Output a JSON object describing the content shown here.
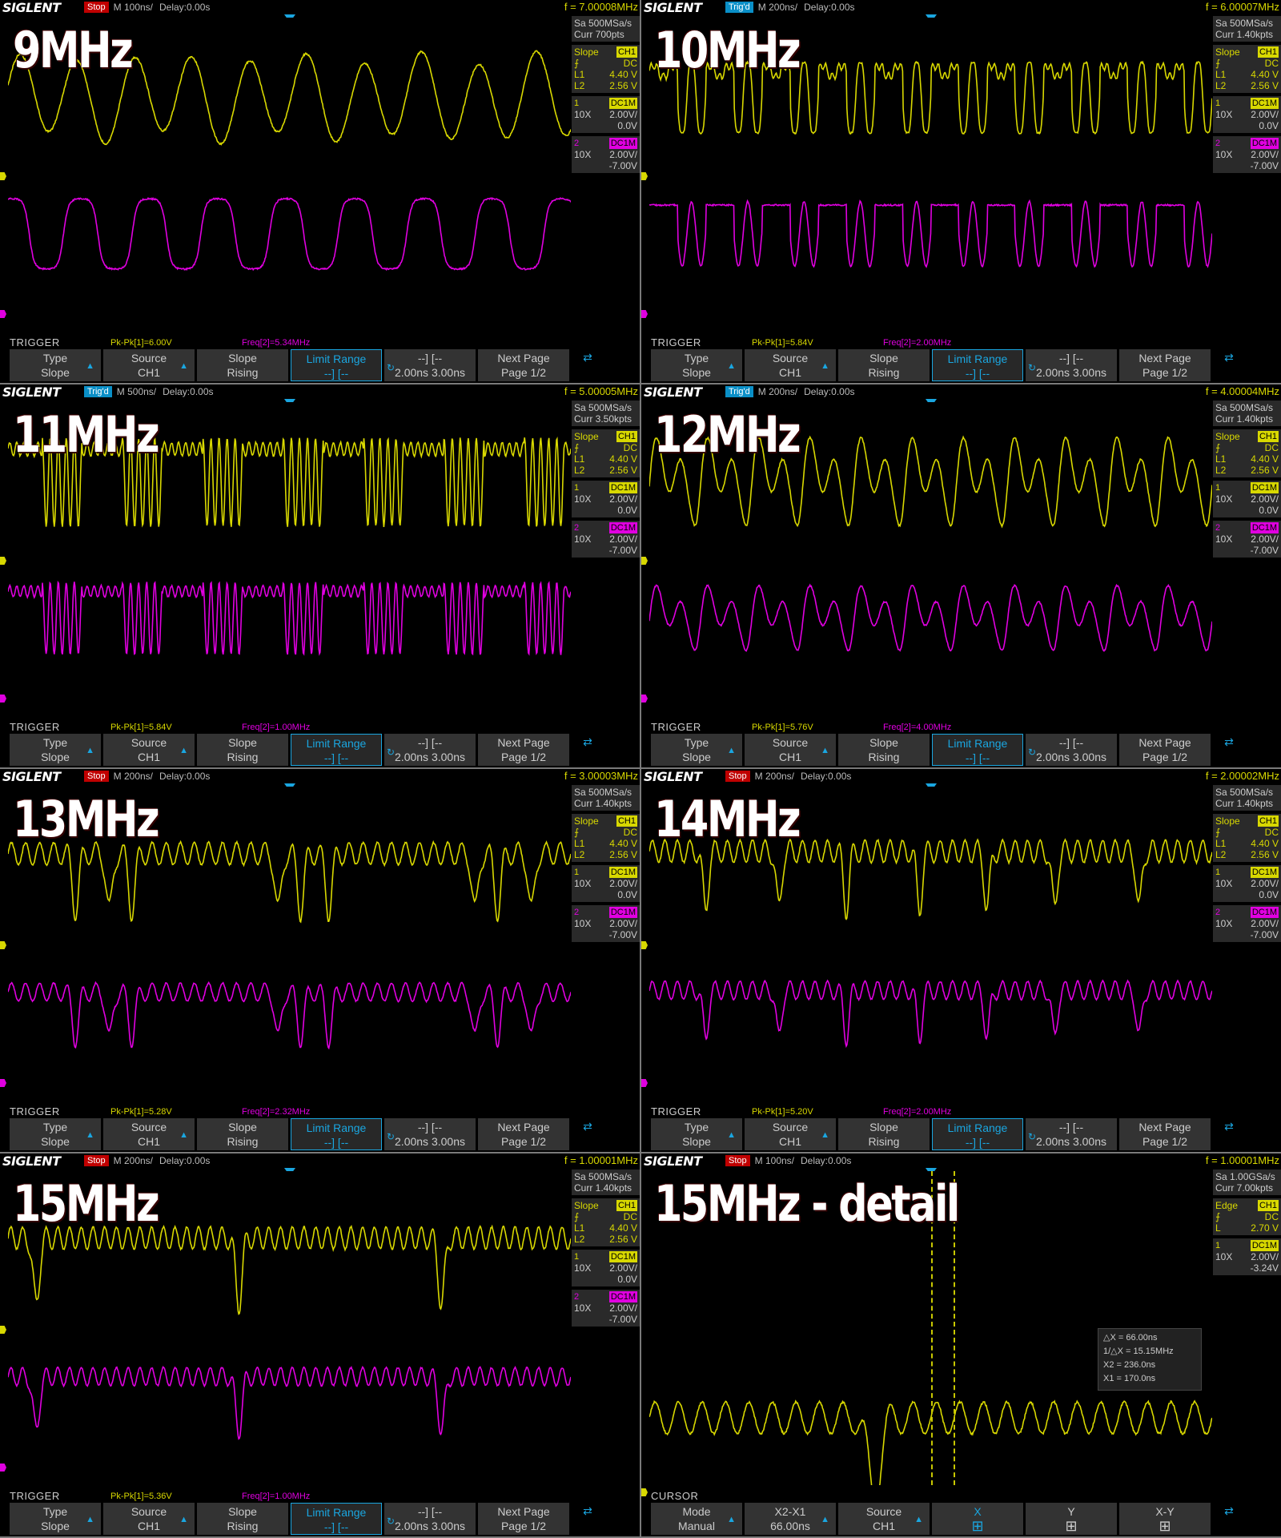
{
  "panels": [
    {
      "brand": "SIGLENT",
      "state": "Stop",
      "timebase": "M 100ns/",
      "delay": "Delay:0.00s",
      "freq": "f = 7.00008MHz",
      "title": "9MHz",
      "sa": "Sa 500MSa/s",
      "curr": "Curr 700pts",
      "trig_type": "Slope",
      "trig_src": "CH1",
      "coupling": "DC",
      "l1": "4.40 V",
      "l2": "2.56 V",
      "ch1": {
        "probe": "10X",
        "coupling": "DC1M",
        "scale": "2.00V/",
        "offset": "0.0V"
      },
      "ch2": {
        "probe": "10X",
        "coupling": "DC1M",
        "scale": "2.00V/",
        "offset": "-7.00V"
      },
      "mode": "TRIGGER",
      "pk": "Pk-Pk[1]=6.00V",
      "fq": "Freq[2]=5.34MHz",
      "wave": "w9",
      "softkeys": [
        {
          "l1": "Type",
          "l2": "Slope",
          "arrow": true
        },
        {
          "l1": "Source",
          "l2": "CH1",
          "arrow": true
        },
        {
          "l1": "Slope",
          "l2": "Rising"
        },
        {
          "l1": "Limit Range",
          "l2": "--] [--",
          "hl": true
        },
        {
          "l1": "--] [--",
          "l2": "2.00ns 3.00ns",
          "circ": true
        },
        {
          "l1": "Next Page",
          "l2": "Page 1/2"
        }
      ]
    },
    {
      "brand": "SIGLENT",
      "state": "Trig'd",
      "timebase": "M 200ns/",
      "delay": "Delay:0.00s",
      "freq": "f = 6.00007MHz",
      "title": "10MHz",
      "sa": "Sa 500MSa/s",
      "curr": "Curr 1.40kpts",
      "trig_type": "Slope",
      "trig_src": "CH1",
      "coupling": "DC",
      "l1": "4.40 V",
      "l2": "2.56 V",
      "ch1": {
        "probe": "10X",
        "coupling": "DC1M",
        "scale": "2.00V/",
        "offset": "0.0V"
      },
      "ch2": {
        "probe": "10X",
        "coupling": "DC1M",
        "scale": "2.00V/",
        "offset": "-7.00V"
      },
      "mode": "TRIGGER",
      "pk": "Pk-Pk[1]=5.84V",
      "fq": "Freq[2]=2.00MHz",
      "wave": "w10",
      "softkeys": [
        {
          "l1": "Type",
          "l2": "Slope",
          "arrow": true
        },
        {
          "l1": "Source",
          "l2": "CH1",
          "arrow": true
        },
        {
          "l1": "Slope",
          "l2": "Rising"
        },
        {
          "l1": "Limit Range",
          "l2": "--] [--",
          "hl": true
        },
        {
          "l1": "--] [--",
          "l2": "2.00ns 3.00ns",
          "circ": true
        },
        {
          "l1": "Next Page",
          "l2": "Page 1/2"
        }
      ]
    },
    {
      "brand": "SIGLENT",
      "state": "Trig'd",
      "timebase": "M 500ns/",
      "delay": "Delay:0.00s",
      "freq": "f = 5.00005MHz",
      "title": "11MHz",
      "sa": "Sa 500MSa/s",
      "curr": "Curr 3.50kpts",
      "trig_type": "Slope",
      "trig_src": "CH1",
      "coupling": "DC",
      "l1": "4.40 V",
      "l2": "2.56 V",
      "ch1": {
        "probe": "10X",
        "coupling": "DC1M",
        "scale": "2.00V/",
        "offset": "0.0V"
      },
      "ch2": {
        "probe": "10X",
        "coupling": "DC1M",
        "scale": "2.00V/",
        "offset": "-7.00V"
      },
      "mode": "TRIGGER",
      "pk": "Pk-Pk[1]=5.84V",
      "fq": "Freq[2]=1.00MHz",
      "wave": "w11",
      "softkeys": [
        {
          "l1": "Type",
          "l2": "Slope",
          "arrow": true
        },
        {
          "l1": "Source",
          "l2": "CH1",
          "arrow": true
        },
        {
          "l1": "Slope",
          "l2": "Rising"
        },
        {
          "l1": "Limit Range",
          "l2": "--] [--",
          "hl": true
        },
        {
          "l1": "--] [--",
          "l2": "2.00ns 3.00ns",
          "circ": true
        },
        {
          "l1": "Next Page",
          "l2": "Page 1/2"
        }
      ]
    },
    {
      "brand": "SIGLENT",
      "state": "Trig'd",
      "timebase": "M 200ns/",
      "delay": "Delay:0.00s",
      "freq": "f = 4.00004MHz",
      "title": "12MHz",
      "sa": "Sa 500MSa/s",
      "curr": "Curr 1.40kpts",
      "trig_type": "Slope",
      "trig_src": "CH1",
      "coupling": "DC",
      "l1": "4.40 V",
      "l2": "2.56 V",
      "ch1": {
        "probe": "10X",
        "coupling": "DC1M",
        "scale": "2.00V/",
        "offset": "0.0V"
      },
      "ch2": {
        "probe": "10X",
        "coupling": "DC1M",
        "scale": "2.00V/",
        "offset": "-7.00V"
      },
      "mode": "TRIGGER",
      "pk": "Pk-Pk[1]=5.76V",
      "fq": "Freq[2]=4.00MHz",
      "wave": "w12",
      "softkeys": [
        {
          "l1": "Type",
          "l2": "Slope",
          "arrow": true
        },
        {
          "l1": "Source",
          "l2": "CH1",
          "arrow": true
        },
        {
          "l1": "Slope",
          "l2": "Rising"
        },
        {
          "l1": "Limit Range",
          "l2": "--] [--",
          "hl": true
        },
        {
          "l1": "--] [--",
          "l2": "2.00ns 3.00ns",
          "circ": true
        },
        {
          "l1": "Next Page",
          "l2": "Page 1/2"
        }
      ]
    },
    {
      "brand": "SIGLENT",
      "state": "Stop",
      "timebase": "M 200ns/",
      "delay": "Delay:0.00s",
      "freq": "f = 3.00003MHz",
      "title": "13MHz",
      "sa": "Sa 500MSa/s",
      "curr": "Curr 1.40kpts",
      "trig_type": "Slope",
      "trig_src": "CH1",
      "coupling": "DC",
      "l1": "4.40 V",
      "l2": "2.56 V",
      "ch1": {
        "probe": "10X",
        "coupling": "DC1M",
        "scale": "2.00V/",
        "offset": "0.0V"
      },
      "ch2": {
        "probe": "10X",
        "coupling": "DC1M",
        "scale": "2.00V/",
        "offset": "-7.00V"
      },
      "mode": "TRIGGER",
      "pk": "Pk-Pk[1]=5.28V",
      "fq": "Freq[2]=2.32MHz",
      "wave": "w13",
      "softkeys": [
        {
          "l1": "Type",
          "l2": "Slope",
          "arrow": true
        },
        {
          "l1": "Source",
          "l2": "CH1",
          "arrow": true
        },
        {
          "l1": "Slope",
          "l2": "Rising"
        },
        {
          "l1": "Limit Range",
          "l2": "--] [--",
          "hl": true
        },
        {
          "l1": "--] [--",
          "l2": "2.00ns 3.00ns",
          "circ": true
        },
        {
          "l1": "Next Page",
          "l2": "Page 1/2"
        }
      ]
    },
    {
      "brand": "SIGLENT",
      "state": "Stop",
      "timebase": "M 200ns/",
      "delay": "Delay:0.00s",
      "freq": "f = 2.00002MHz",
      "title": "14MHz",
      "sa": "Sa 500MSa/s",
      "curr": "Curr 1.40kpts",
      "trig_type": "Slope",
      "trig_src": "CH1",
      "coupling": "DC",
      "l1": "4.40 V",
      "l2": "2.56 V",
      "ch1": {
        "probe": "10X",
        "coupling": "DC1M",
        "scale": "2.00V/",
        "offset": "0.0V"
      },
      "ch2": {
        "probe": "10X",
        "coupling": "DC1M",
        "scale": "2.00V/",
        "offset": "-7.00V"
      },
      "mode": "TRIGGER",
      "pk": "Pk-Pk[1]=5.20V",
      "fq": "Freq[2]=2.00MHz",
      "wave": "w14",
      "softkeys": [
        {
          "l1": "Type",
          "l2": "Slope",
          "arrow": true
        },
        {
          "l1": "Source",
          "l2": "CH1",
          "arrow": true
        },
        {
          "l1": "Slope",
          "l2": "Rising"
        },
        {
          "l1": "Limit Range",
          "l2": "--] [--",
          "hl": true
        },
        {
          "l1": "--] [--",
          "l2": "2.00ns 3.00ns",
          "circ": true
        },
        {
          "l1": "Next Page",
          "l2": "Page 1/2"
        }
      ]
    },
    {
      "brand": "SIGLENT",
      "state": "Stop",
      "timebase": "M 200ns/",
      "delay": "Delay:0.00s",
      "freq": "f = 1.00001MHz",
      "title": "15MHz",
      "sa": "Sa 500MSa/s",
      "curr": "Curr 1.40kpts",
      "trig_type": "Slope",
      "trig_src": "CH1",
      "coupling": "DC",
      "l1": "4.40 V",
      "l2": "2.56 V",
      "ch1": {
        "probe": "10X",
        "coupling": "DC1M",
        "scale": "2.00V/",
        "offset": "0.0V"
      },
      "ch2": {
        "probe": "10X",
        "coupling": "DC1M",
        "scale": "2.00V/",
        "offset": "-7.00V"
      },
      "mode": "TRIGGER",
      "pk": "Pk-Pk[1]=5.36V",
      "fq": "Freq[2]=1.00MHz",
      "wave": "w15",
      "softkeys": [
        {
          "l1": "Type",
          "l2": "Slope",
          "arrow": true
        },
        {
          "l1": "Source",
          "l2": "CH1",
          "arrow": true
        },
        {
          "l1": "Slope",
          "l2": "Rising"
        },
        {
          "l1": "Limit Range",
          "l2": "--] [--",
          "hl": true
        },
        {
          "l1": "--] [--",
          "l2": "2.00ns 3.00ns",
          "circ": true
        },
        {
          "l1": "Next Page",
          "l2": "Page 1/2"
        }
      ]
    },
    {
      "brand": "SIGLENT",
      "state": "Stop",
      "timebase": "M 100ns/",
      "delay": "Delay:0.00s",
      "freq": "f = 1.00001MHz",
      "title": "15MHz - detail",
      "sa": "Sa 1.00GSa/s",
      "curr": "Curr 7.00kpts",
      "trig_type": "Edge",
      "trig_src": "CH1",
      "coupling": "DC",
      "l1": "",
      "l2": "",
      "level_label": "L",
      "level": "2.70 V",
      "ch1": {
        "probe": "10X",
        "coupling": "DC1M",
        "scale": "2.00V/",
        "offset": "-3.24V"
      },
      "ch2": null,
      "mode": "CURSOR",
      "pk": "",
      "fq": "",
      "wave": "w15d",
      "cursor": {
        "dx": "△X = 66.00ns",
        "inv": "1/△X = 15.15MHz",
        "x2": "X2 = 236.0ns",
        "x1": "X1 = 170.0ns"
      },
      "softkeys": [
        {
          "l1": "Mode",
          "l2": "Manual",
          "arrow": true
        },
        {
          "l1": "X2-X1",
          "l2": "66.00ns",
          "arrow": true
        },
        {
          "l1": "Source",
          "l2": "CH1",
          "arrow": true
        },
        {
          "l1": "X",
          "l2": "",
          "icon": true,
          "hl2": true
        },
        {
          "l1": "Y",
          "l2": "",
          "icon": true
        },
        {
          "l1": "X-Y",
          "l2": "",
          "icon": true
        }
      ]
    }
  ],
  "colors": {
    "ch1": "#d8d800",
    "ch2": "#e000e0",
    "accent": "#1aa6e0",
    "stop": "#c00000"
  }
}
